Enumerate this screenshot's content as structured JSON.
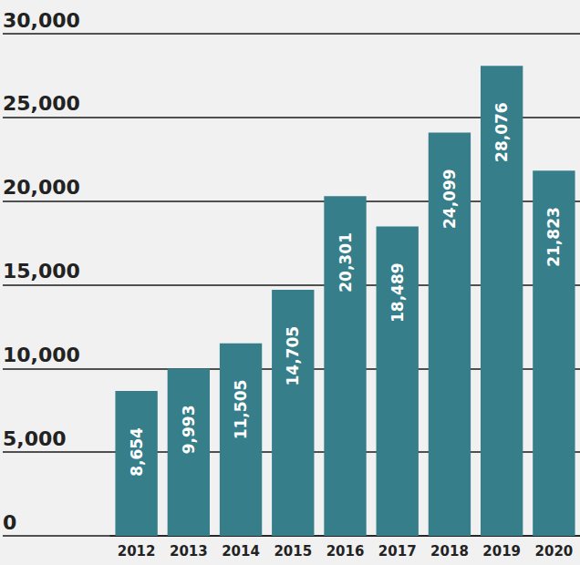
{
  "chart_data": {
    "type": "bar",
    "categories": [
      "2012",
      "2013",
      "2014",
      "2015",
      "2016",
      "2017",
      "2018",
      "2019",
      "2020"
    ],
    "values": [
      8654,
      9993,
      11505,
      14705,
      20301,
      18489,
      24099,
      28076,
      21823
    ],
    "value_labels": [
      "8,654",
      "9,993",
      "11,505",
      "14,705",
      "20,301",
      "18,489",
      "24,099",
      "28,076",
      "21,823"
    ],
    "color": "#357e8a",
    "ylim": [
      0,
      30000
    ],
    "yticks": [
      0,
      {
        "value": 5000,
        "label": "5,000"
      },
      {
        "value": 10000,
        "label": "10,000"
      },
      {
        "value": 15000,
        "label": "15,000"
      },
      {
        "value": 20000,
        "label": "20,000"
      },
      {
        "value": 25000,
        "label": "25,000"
      },
      {
        "value": 30000,
        "label": "30,000"
      }
    ],
    "grid": true,
    "data_labels": true
  }
}
